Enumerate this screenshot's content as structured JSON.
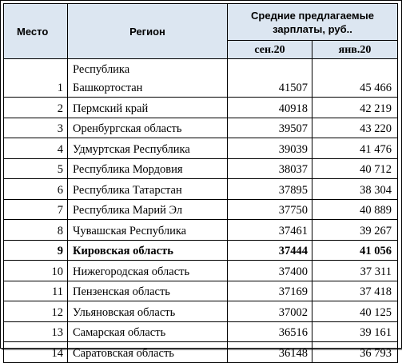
{
  "header": {
    "place": "Место",
    "region": "Регион",
    "group": "Средние предлагаемые зарплаты, руб..",
    "col_sep": "сен.20",
    "col_jan": "янв.20"
  },
  "rows": [
    {
      "place": "1",
      "region_line1": "Республика",
      "region_line2": "Башкортостан",
      "sep": "41507",
      "jan": "45 466"
    },
    {
      "place": "2",
      "region": "Пермский край",
      "sep": "40918",
      "jan": "42 219"
    },
    {
      "place": "3",
      "region": "Оренбургская область",
      "sep": "39507",
      "jan": "43 220"
    },
    {
      "place": "4",
      "region": "Удмуртская Республика",
      "sep": "39039",
      "jan": "41 476"
    },
    {
      "place": "5",
      "region": "Республика Мордовия",
      "sep": "38037",
      "jan": "40 712"
    },
    {
      "place": "6",
      "region": "Республика Татарстан",
      "sep": "37895",
      "jan": "38 304"
    },
    {
      "place": "7",
      "region": "Республика Марий Эл",
      "sep": "37750",
      "jan": "40 889"
    },
    {
      "place": "8",
      "region": "Чувашская Республика",
      "sep": "37461",
      "jan": "39 267"
    },
    {
      "place": "9",
      "region": "Кировская область",
      "sep": "37444",
      "jan": "41 056",
      "bold": true
    },
    {
      "place": "10",
      "region": "Нижегородская область",
      "sep": "37400",
      "jan": "37 311"
    },
    {
      "place": "11",
      "region": "Пензенская область",
      "sep": "37169",
      "jan": "37 418"
    },
    {
      "place": "12",
      "region": "Ульяновская область",
      "sep": "37002",
      "jan": "40 125"
    },
    {
      "place": "13",
      "region": "Самарская область",
      "sep": "36516",
      "jan": "39 161"
    },
    {
      "place": "14",
      "region": "Саратовская область",
      "sep": "36148",
      "jan": "36 793"
    }
  ]
}
